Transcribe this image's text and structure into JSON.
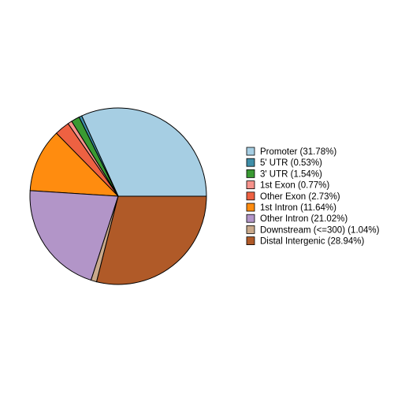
{
  "chart_data": {
    "type": "pie",
    "categories": [
      "Promoter (31.78%)",
      "5' UTR (0.53%)",
      "3' UTR (1.54%)",
      "1st Exon (0.77%)",
      "Other Exon (2.73%)",
      "1st Intron (11.64%)",
      "Other Intron (21.02%)",
      "Downstream (<=300) (1.04%)",
      "Distal Intergenic (28.94%)"
    ],
    "values": [
      31.78,
      0.53,
      1.54,
      0.77,
      2.73,
      11.64,
      21.02,
      1.04,
      28.94
    ],
    "colors": [
      "#a6cee3",
      "#3f8ea8",
      "#3a9a33",
      "#f7938c",
      "#ee6142",
      "#ff8c0f",
      "#b295c8",
      "#c9a98b",
      "#b05a28"
    ],
    "legend": "right"
  }
}
